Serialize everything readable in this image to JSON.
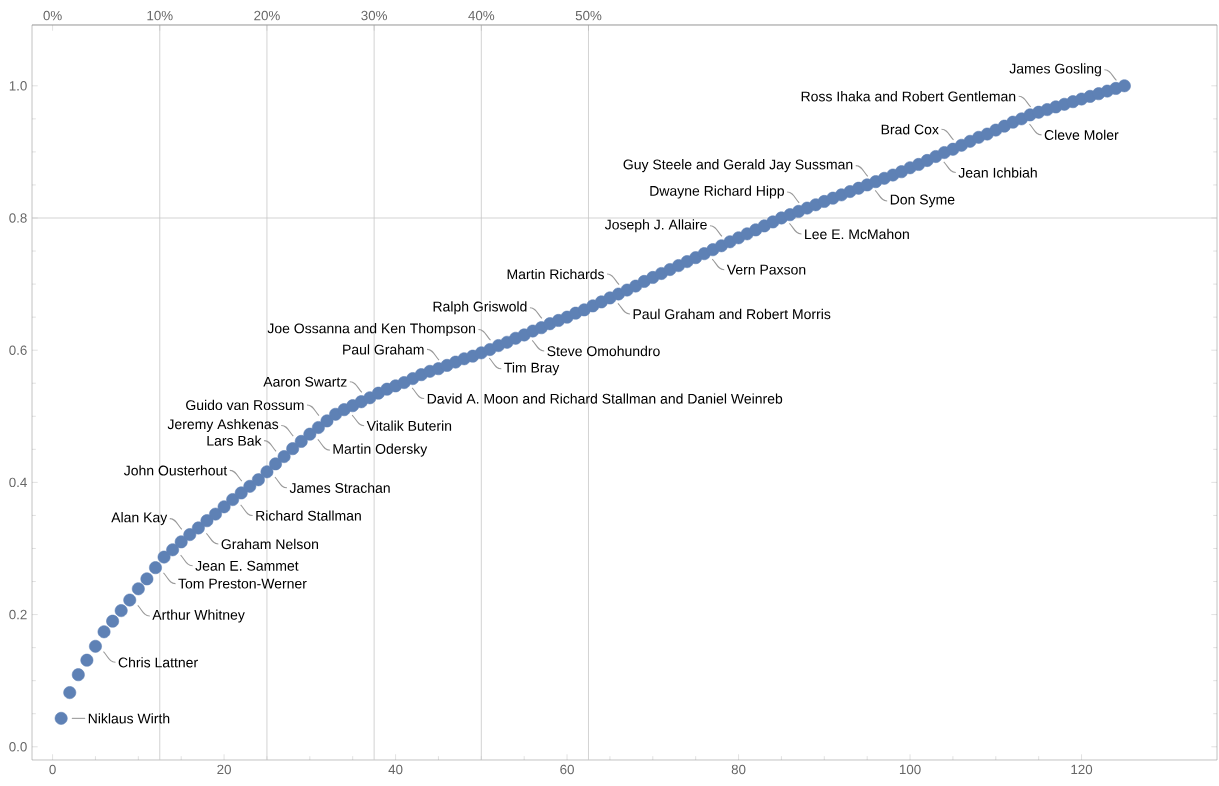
{
  "chart_data": {
    "type": "scatter",
    "color": "#5e81b5",
    "x": [
      1,
      2,
      3,
      4,
      5,
      6,
      7,
      8,
      9,
      10,
      11,
      12,
      13,
      14,
      15,
      16,
      17,
      18,
      19,
      20,
      21,
      22,
      23,
      24,
      25,
      26,
      27,
      28,
      29,
      30,
      31,
      32,
      33,
      34,
      35,
      36,
      37,
      38,
      39,
      40,
      41,
      42,
      43,
      44,
      45,
      46,
      47,
      48,
      49,
      50,
      51,
      52,
      53,
      54,
      55,
      56,
      57,
      58,
      59,
      60,
      61,
      62,
      63,
      64,
      65,
      66,
      67,
      68,
      69,
      70,
      71,
      72,
      73,
      74,
      75,
      76,
      77,
      78,
      79,
      80,
      81,
      82,
      83,
      84,
      85,
      86,
      87,
      88,
      89,
      90,
      91,
      92,
      93,
      94,
      95,
      96,
      97,
      98,
      99,
      100,
      101,
      102,
      103,
      104,
      105,
      106,
      107,
      108,
      109,
      110,
      111,
      112,
      113,
      114,
      115,
      116,
      117,
      118,
      119,
      120,
      121,
      122,
      123,
      124,
      125
    ],
    "values": [
      0.043,
      0.082,
      0.109,
      0.131,
      0.152,
      0.174,
      0.19,
      0.206,
      0.222,
      0.239,
      0.254,
      0.271,
      0.287,
      0.298,
      0.31,
      0.321,
      0.331,
      0.342,
      0.352,
      0.363,
      0.374,
      0.384,
      0.394,
      0.404,
      0.416,
      0.428,
      0.439,
      0.451,
      0.462,
      0.473,
      0.483,
      0.493,
      0.503,
      0.51,
      0.516,
      0.522,
      0.528,
      0.535,
      0.541,
      0.546,
      0.551,
      0.557,
      0.563,
      0.568,
      0.572,
      0.577,
      0.582,
      0.587,
      0.591,
      0.596,
      0.601,
      0.607,
      0.612,
      0.618,
      0.623,
      0.629,
      0.634,
      0.64,
      0.645,
      0.65,
      0.656,
      0.661,
      0.667,
      0.673,
      0.679,
      0.685,
      0.691,
      0.697,
      0.704,
      0.71,
      0.716,
      0.722,
      0.728,
      0.734,
      0.74,
      0.746,
      0.752,
      0.758,
      0.764,
      0.77,
      0.776,
      0.782,
      0.788,
      0.794,
      0.8,
      0.805,
      0.81,
      0.815,
      0.82,
      0.825,
      0.83,
      0.835,
      0.84,
      0.845,
      0.85,
      0.855,
      0.86,
      0.865,
      0.87,
      0.876,
      0.881,
      0.887,
      0.893,
      0.899,
      0.904,
      0.91,
      0.916,
      0.922,
      0.927,
      0.933,
      0.939,
      0.945,
      0.95,
      0.956,
      0.96,
      0.964,
      0.968,
      0.972,
      0.976,
      0.98,
      0.984,
      0.988,
      0.992,
      0.996,
      1.0
    ],
    "xlim": [
      -2.4,
      135.8
    ],
    "ylim": [
      -0.02,
      1.092
    ],
    "xticks": [
      0,
      20,
      40,
      60,
      80,
      100,
      120
    ],
    "yticks": [
      {
        "value": 0,
        "label": "0.0"
      },
      0.2,
      0.4,
      0.6,
      0.8,
      {
        "value": 1,
        "label": "1.0"
      }
    ],
    "x2lim": [
      -1.92,
      108.64
    ],
    "x2ticks": [
      {
        "value": 0,
        "label": "0%"
      },
      {
        "value": 10,
        "label": "10%"
      },
      {
        "value": 20,
        "label": "20%"
      },
      {
        "value": 30,
        "label": "30%"
      },
      {
        "value": 40,
        "label": "40%"
      },
      {
        "value": 50,
        "label": "50%"
      }
    ],
    "ref_lines": [
      {
        "axis": "x",
        "value": 12.5,
        "color": "#c8c8c8"
      },
      {
        "axis": "x",
        "value": 25,
        "color": "#c8c8c8"
      },
      {
        "axis": "x",
        "value": 37.5,
        "color": "#c8c8c8"
      },
      {
        "axis": "x",
        "value": 50,
        "color": "#c8c8c8"
      },
      {
        "axis": "x",
        "value": 62.5,
        "color": "#c8c8c8"
      },
      {
        "axis": "y",
        "value": 0.8,
        "color": "#c8c8c8"
      }
    ],
    "annotations": [
      {
        "text": "Niklaus Wirth",
        "x": 1,
        "y": 0.043
      },
      {
        "text": "Chris Lattner",
        "x": 5,
        "y": 0.152
      },
      {
        "text": "Arthur Whitney",
        "x": 9,
        "y": 0.222
      },
      {
        "text": "Tom Preston-Werner",
        "x": 12,
        "y": 0.271
      },
      {
        "text": "Jean E. Sammet",
        "x": 14,
        "y": 0.298
      },
      {
        "text": "Alan Kay",
        "x": 16,
        "y": 0.321
      },
      {
        "text": "Graham Nelson",
        "x": 17,
        "y": 0.331
      },
      {
        "text": "Richard Stallman",
        "x": 21,
        "y": 0.374
      },
      {
        "text": "John Ousterhout",
        "x": 23,
        "y": 0.394
      },
      {
        "text": "James Strachan",
        "x": 25,
        "y": 0.416
      },
      {
        "text": "Lars Bak",
        "x": 27,
        "y": 0.439
      },
      {
        "text": "Jeremy Ashkenas",
        "x": 29,
        "y": 0.462
      },
      {
        "text": "Martin Odersky",
        "x": 30,
        "y": 0.473
      },
      {
        "text": "Guido van Rossum",
        "x": 32,
        "y": 0.493
      },
      {
        "text": "Vitalik Buterin",
        "x": 34,
        "y": 0.51
      },
      {
        "text": "Aaron Swartz",
        "x": 37,
        "y": 0.528
      },
      {
        "text": "David A. Moon and Richard Stallman and Daniel Weinreb",
        "x": 41,
        "y": 0.551
      },
      {
        "text": "Paul Graham",
        "x": 46,
        "y": 0.577
      },
      {
        "text": "Tim Bray",
        "x": 50,
        "y": 0.596
      },
      {
        "text": "Joe Ossanna and Ken Thompson",
        "x": 52,
        "y": 0.607
      },
      {
        "text": "Steve Omohundro",
        "x": 55,
        "y": 0.623
      },
      {
        "text": "Ralph Griswold",
        "x": 58,
        "y": 0.64
      },
      {
        "text": "Paul Graham and Robert Morris",
        "x": 65,
        "y": 0.679
      },
      {
        "text": "Martin Richards",
        "x": 67,
        "y": 0.691
      },
      {
        "text": "Vern Paxson",
        "x": 76,
        "y": 0.746
      },
      {
        "text": "Joseph J. Allaire",
        "x": 79,
        "y": 0.764
      },
      {
        "text": "Lee E. McMahon",
        "x": 85,
        "y": 0.8
      },
      {
        "text": "Dwayne Richard Hipp",
        "x": 88,
        "y": 0.815
      },
      {
        "text": "Don Syme",
        "x": 95,
        "y": 0.85
      },
      {
        "text": "Guy Steele and Gerald Jay Sussman",
        "x": 96,
        "y": 0.855
      },
      {
        "text": "Jean Ichbiah",
        "x": 103,
        "y": 0.893
      },
      {
        "text": "Brad Cox",
        "x": 106,
        "y": 0.91
      },
      {
        "text": "Cleve Moler",
        "x": 113,
        "y": 0.95
      },
      {
        "text": "Ross Ihaka and Robert Gentleman",
        "x": 115,
        "y": 0.96
      },
      {
        "text": "James Gosling",
        "x": 125,
        "y": 1.0
      }
    ]
  }
}
